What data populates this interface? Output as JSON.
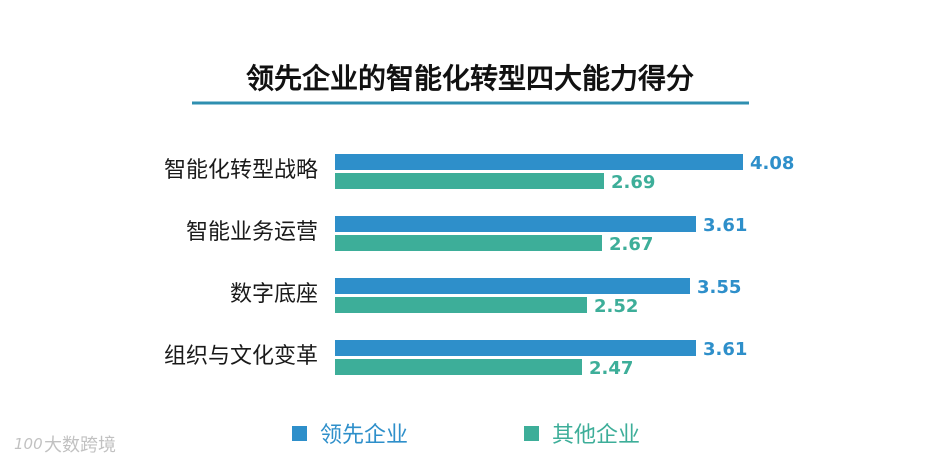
{
  "chart_data": {
    "type": "bar",
    "orientation": "horizontal",
    "title": "领先企业的智能化转型四大能力得分",
    "categories": [
      "智能化转型战略",
      "智能业务运营",
      "数字底座",
      "组织与文化变革"
    ],
    "series": [
      {
        "name": "领先企业",
        "values": [
          4.08,
          3.61,
          3.55,
          3.61
        ],
        "color": "#2e8fca"
      },
      {
        "name": "其他企业",
        "values": [
          2.69,
          2.67,
          2.52,
          2.47
        ],
        "color": "#3dae99"
      }
    ],
    "xlim": [
      0,
      5
    ],
    "grid": false,
    "legend": "bottom"
  },
  "colors": {
    "title_underline": "#2f8fb0",
    "title_text": "#111111",
    "label_text": "#1a1a1a"
  },
  "watermark": {
    "text": "大数跨境",
    "logo_text": "100"
  }
}
